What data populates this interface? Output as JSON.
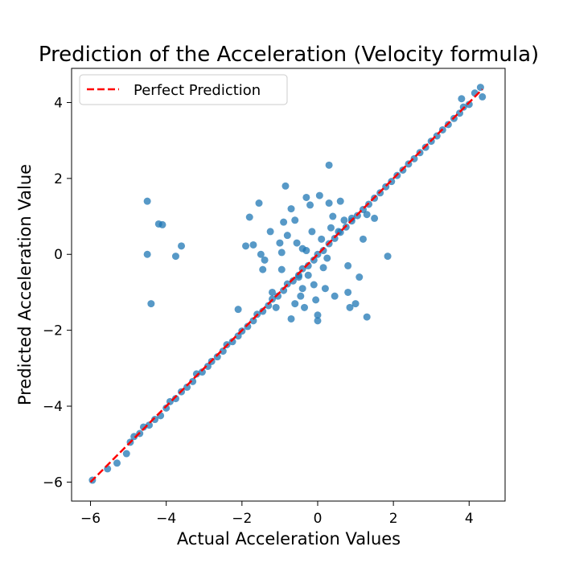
{
  "chart_data": {
    "type": "scatter",
    "title": "Prediction of the Acceleration (Velocity formula)",
    "xlabel": "Actual Acceleration Values",
    "ylabel": "Predicted Acceleration Value",
    "xlim": [
      -6.5,
      4.95
    ],
    "ylim": [
      -6.5,
      4.9
    ],
    "xticks": [
      -6,
      -4,
      -2,
      0,
      2,
      4
    ],
    "yticks": [
      -6,
      -4,
      -2,
      0,
      2,
      4
    ],
    "grid": false,
    "legend": {
      "position": "top-left",
      "entries": [
        "Perfect Prediction"
      ]
    },
    "colors": {
      "points": "#1f77b4",
      "line": "#ff0000",
      "axes": "#000000"
    },
    "series": [
      {
        "kind": "scatter",
        "points": [
          [
            -5.95,
            -5.95
          ],
          [
            -5.55,
            -5.65
          ],
          [
            -5.3,
            -5.5
          ],
          [
            -5.05,
            -5.25
          ],
          [
            -4.95,
            -4.95
          ],
          [
            -4.85,
            -4.8
          ],
          [
            -4.7,
            -4.72
          ],
          [
            -4.6,
            -4.55
          ],
          [
            -4.45,
            -4.5
          ],
          [
            -4.3,
            -4.35
          ],
          [
            -4.15,
            -4.25
          ],
          [
            -4.0,
            -4.05
          ],
          [
            -3.9,
            -3.88
          ],
          [
            -3.75,
            -3.8
          ],
          [
            -3.6,
            -3.62
          ],
          [
            -3.45,
            -3.5
          ],
          [
            -3.3,
            -3.35
          ],
          [
            -3.2,
            -3.15
          ],
          [
            -3.05,
            -3.1
          ],
          [
            -2.9,
            -2.95
          ],
          [
            -2.8,
            -2.82
          ],
          [
            -2.65,
            -2.7
          ],
          [
            -2.5,
            -2.55
          ],
          [
            -2.4,
            -2.38
          ],
          [
            -2.25,
            -2.3
          ],
          [
            -2.1,
            -2.15
          ],
          [
            -2.0,
            -2.02
          ],
          [
            -1.85,
            -1.9
          ],
          [
            -1.7,
            -1.75
          ],
          [
            -1.6,
            -1.58
          ],
          [
            -1.45,
            -1.5
          ],
          [
            -1.3,
            -1.35
          ],
          [
            -1.2,
            -1.18
          ],
          [
            -1.05,
            -1.1
          ],
          [
            -0.9,
            -0.95
          ],
          [
            -0.8,
            -0.78
          ],
          [
            -0.65,
            -0.7
          ],
          [
            -0.5,
            -0.55
          ],
          [
            -0.4,
            -0.38
          ],
          [
            -0.25,
            -0.3
          ],
          [
            -0.1,
            -0.15
          ],
          [
            0.0,
            0.0
          ],
          [
            0.15,
            0.1
          ],
          [
            0.3,
            0.28
          ],
          [
            0.45,
            0.42
          ],
          [
            0.6,
            0.58
          ],
          [
            0.75,
            0.72
          ],
          [
            0.9,
            0.88
          ],
          [
            1.05,
            1.02
          ],
          [
            1.2,
            1.18
          ],
          [
            1.35,
            1.32
          ],
          [
            1.5,
            1.48
          ],
          [
            1.65,
            1.62
          ],
          [
            1.8,
            1.78
          ],
          [
            1.95,
            1.92
          ],
          [
            2.1,
            2.08
          ],
          [
            2.25,
            2.22
          ],
          [
            2.4,
            2.38
          ],
          [
            2.55,
            2.52
          ],
          [
            2.7,
            2.68
          ],
          [
            2.85,
            2.82
          ],
          [
            3.0,
            2.98
          ],
          [
            3.15,
            3.12
          ],
          [
            3.3,
            3.28
          ],
          [
            3.45,
            3.42
          ],
          [
            3.6,
            3.58
          ],
          [
            3.75,
            3.72
          ],
          [
            3.85,
            3.88
          ],
          [
            4.0,
            3.95
          ],
          [
            4.15,
            4.25
          ],
          [
            4.3,
            4.4
          ],
          [
            4.35,
            4.15
          ],
          [
            3.8,
            4.1
          ],
          [
            -4.5,
            1.4
          ],
          [
            -4.2,
            0.8
          ],
          [
            -4.1,
            0.78
          ],
          [
            -3.6,
            0.22
          ],
          [
            -4.5,
            0.0
          ],
          [
            -3.75,
            -0.05
          ],
          [
            -4.4,
            -1.3
          ],
          [
            -1.9,
            0.22
          ],
          [
            -1.8,
            0.98
          ],
          [
            -1.7,
            0.25
          ],
          [
            -1.55,
            1.35
          ],
          [
            -1.5,
            0.0
          ],
          [
            -1.4,
            -0.15
          ],
          [
            -1.45,
            -0.4
          ],
          [
            -2.1,
            -1.45
          ],
          [
            -0.85,
            1.8
          ],
          [
            -0.9,
            0.85
          ],
          [
            -0.95,
            0.05
          ],
          [
            -0.8,
            0.5
          ],
          [
            -0.7,
            1.2
          ],
          [
            -0.6,
            0.9
          ],
          [
            -0.55,
            0.3
          ],
          [
            -0.5,
            -0.6
          ],
          [
            -0.45,
            -1.1
          ],
          [
            -0.35,
            -1.4
          ],
          [
            -0.3,
            1.5
          ],
          [
            -0.2,
            1.3
          ],
          [
            -0.15,
            0.6
          ],
          [
            -0.1,
            -0.8
          ],
          [
            -0.05,
            -1.2
          ],
          [
            0.0,
            -1.6
          ],
          [
            0.05,
            1.55
          ],
          [
            0.1,
            0.4
          ],
          [
            0.15,
            -0.35
          ],
          [
            0.2,
            -0.9
          ],
          [
            0.3,
            1.35
          ],
          [
            0.35,
            0.7
          ],
          [
            0.4,
            1.0
          ],
          [
            0.45,
            -1.1
          ],
          [
            0.55,
            0.6
          ],
          [
            0.6,
            1.4
          ],
          [
            0.7,
            0.9
          ],
          [
            0.3,
            2.35
          ],
          [
            -0.4,
            -0.9
          ],
          [
            -0.6,
            -1.3
          ],
          [
            -0.7,
            -1.7
          ],
          [
            -0.25,
            -0.55
          ],
          [
            0.0,
            -1.75
          ],
          [
            0.8,
            -0.3
          ],
          [
            0.8,
            -1.0
          ],
          [
            0.85,
            -1.4
          ],
          [
            1.1,
            -0.6
          ],
          [
            1.3,
            -1.65
          ],
          [
            1.0,
            -1.3
          ],
          [
            1.2,
            0.4
          ],
          [
            1.3,
            1.05
          ],
          [
            1.85,
            -0.05
          ],
          [
            1.5,
            0.95
          ],
          [
            0.9,
            0.95
          ],
          [
            -1.25,
            0.6
          ],
          [
            -1.2,
            -1.0
          ],
          [
            -1.1,
            -1.4
          ],
          [
            -1.0,
            0.3
          ],
          [
            -0.95,
            -0.4
          ],
          [
            -0.4,
            0.15
          ],
          [
            -0.3,
            0.1
          ],
          [
            0.25,
            -0.1
          ]
        ]
      },
      {
        "kind": "line",
        "name": "Perfect Prediction",
        "x": [
          -6.0,
          4.35
        ],
        "y": [
          -6.0,
          4.35
        ]
      }
    ]
  }
}
